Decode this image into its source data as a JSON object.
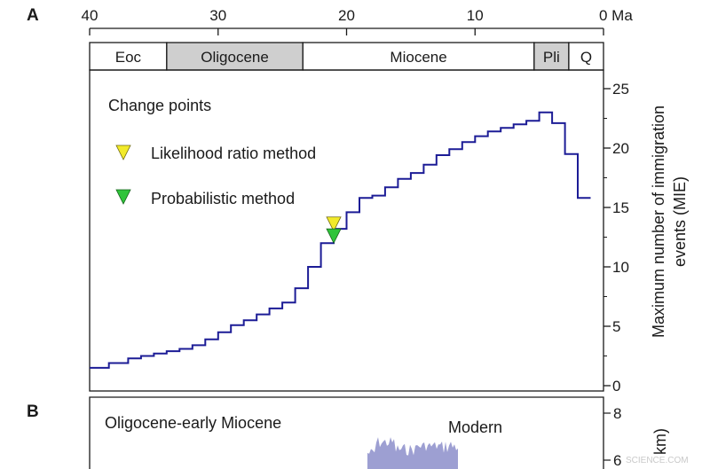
{
  "chart_data": [
    {
      "panel": "A",
      "type": "line",
      "step": true,
      "x_axis_unit": "Ma",
      "xlim": [
        40,
        0
      ],
      "x_ticks": [
        {
          "value": 40,
          "label": "40"
        },
        {
          "value": 30,
          "label": "30"
        },
        {
          "value": 20,
          "label": "20"
        },
        {
          "value": 10,
          "label": "10"
        },
        {
          "value": 0,
          "label": "0 Ma"
        }
      ],
      "epochs": [
        {
          "label": "Eoc",
          "start": 40,
          "end": 34,
          "shaded": false
        },
        {
          "label": "Oligocene",
          "start": 34,
          "end": 23.4,
          "shaded": true
        },
        {
          "label": "Miocene",
          "start": 23.4,
          "end": 5.4,
          "shaded": false
        },
        {
          "label": "Pli",
          "start": 5.4,
          "end": 2.7,
          "shaded": true
        },
        {
          "label": "Q",
          "start": 2.7,
          "end": 0,
          "shaded": false
        }
      ],
      "ylim": [
        0,
        26
      ],
      "y_ticks": [
        0,
        5,
        10,
        15,
        20,
        25
      ],
      "ylabel_lines": [
        "Maximum number of immigration",
        "events (MIE)"
      ],
      "legend_title": "Change points",
      "legend": [
        {
          "label": "Likelihood ratio method",
          "color": "#f2ea2a"
        },
        {
          "label": "Probabilistic method",
          "color": "#2fc43a"
        }
      ],
      "line_color": "#1c1c96",
      "series": {
        "x": [
          39.5,
          37.5,
          36.5,
          35.5,
          34.5,
          33.5,
          32.5,
          31.5,
          30.5,
          29.5,
          28.5,
          27.5,
          26.5,
          25.5,
          24.5,
          23.5,
          22.5,
          21.5,
          20.5,
          19.5,
          18.5,
          17.5,
          16.5,
          15.5,
          14.5,
          13.5,
          12.5,
          11.5,
          10.5,
          9.5,
          8.5,
          7.5,
          6.5,
          5.5,
          4.5,
          3.5,
          2.5,
          1.5
        ],
        "y": [
          1.5,
          1.9,
          2.3,
          2.5,
          2.7,
          2.9,
          3.1,
          3.4,
          3.9,
          4.5,
          5.1,
          5.5,
          6,
          6.5,
          7,
          8.2,
          10,
          12,
          13.2,
          14.6,
          15.8,
          16,
          16.7,
          17.4,
          17.9,
          18.6,
          19.4,
          19.9,
          20.5,
          21,
          21.4,
          21.7,
          22,
          22.3,
          23,
          22.1,
          19.5,
          15.8
        ]
      },
      "change_points": [
        {
          "method": "Likelihood ratio method",
          "x": 21,
          "y": 13.6
        },
        {
          "method": "Probabilistic method",
          "x": 21,
          "y": 12.6
        }
      ]
    },
    {
      "panel": "B",
      "type": "area",
      "annotations": [
        "Oligocene-early Miocene",
        "Modern"
      ],
      "y_ticks": [
        6,
        8
      ],
      "ylabel_fragment": "km)",
      "fill_color": "#9d9fd2"
    }
  ],
  "watermark": "SCIENCE.COM"
}
